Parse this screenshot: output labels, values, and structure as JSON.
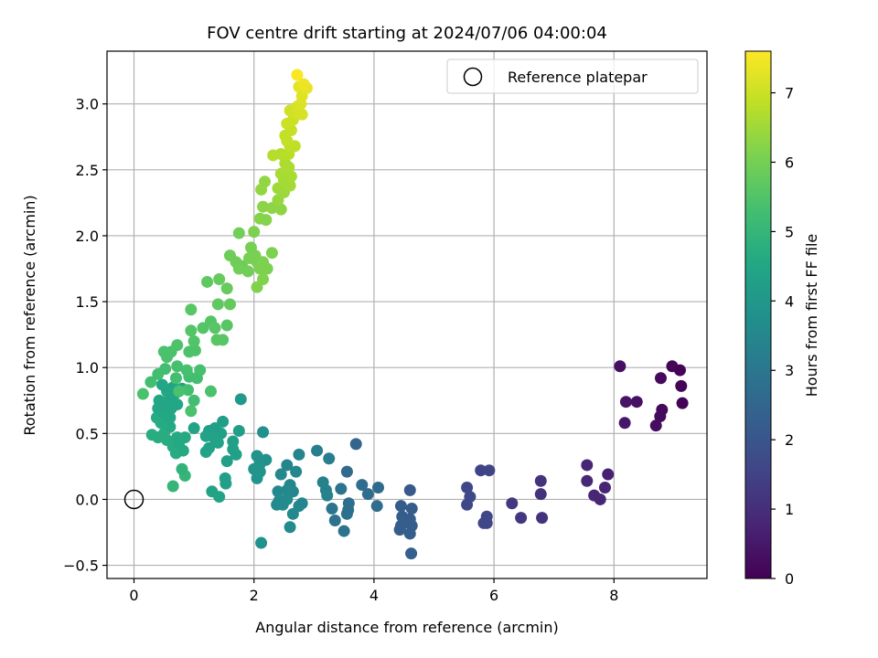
{
  "chart_data": {
    "type": "scatter",
    "title": "FOV centre drift starting at 2024/07/06 04:00:04",
    "xlabel": "Angular distance from reference (arcmin)",
    "ylabel": "Rotation from reference (arcmin)",
    "xlim": [
      -0.45,
      9.55
    ],
    "ylim": [
      -0.6,
      3.4
    ],
    "xticks": [
      0,
      2,
      4,
      6,
      8
    ],
    "yticks": [
      -0.5,
      0.0,
      0.5,
      1.0,
      1.5,
      2.0,
      2.5,
      3.0
    ],
    "xtick_labels": [
      "0",
      "2",
      "4",
      "6",
      "8"
    ],
    "ytick_labels": [
      "−0.5",
      "0.0",
      "0.5",
      "1.0",
      "1.5",
      "2.0",
      "2.5",
      "3.0"
    ],
    "grid": true,
    "legend": {
      "location": "upper right",
      "entries": [
        {
          "label": "Reference platepar",
          "marker": "open-circle"
        }
      ]
    },
    "reference_point": {
      "x": 0.0,
      "y": 0.0
    },
    "colorbar": {
      "label": "Hours from first FF file",
      "colormap": "viridis",
      "range": [
        0,
        7.6
      ],
      "ticks": [
        0,
        1,
        2,
        3,
        4,
        5,
        6,
        7
      ],
      "tick_labels": [
        "0",
        "1",
        "2",
        "3",
        "4",
        "5",
        "6",
        "7"
      ]
    },
    "points": [
      {
        "x": 8.1,
        "y": 1.01,
        "c": 0.3
      },
      {
        "x": 8.97,
        "y": 1.01,
        "c": 0.1
      },
      {
        "x": 9.1,
        "y": 0.98,
        "c": 0.05
      },
      {
        "x": 8.78,
        "y": 0.92,
        "c": 0.2
      },
      {
        "x": 9.12,
        "y": 0.86,
        "c": 0.08
      },
      {
        "x": 8.2,
        "y": 0.74,
        "c": 0.4
      },
      {
        "x": 8.38,
        "y": 0.74,
        "c": 0.35
      },
      {
        "x": 9.14,
        "y": 0.73,
        "c": 0.05
      },
      {
        "x": 8.8,
        "y": 0.68,
        "c": 0.15
      },
      {
        "x": 8.77,
        "y": 0.63,
        "c": 0.2
      },
      {
        "x": 8.18,
        "y": 0.58,
        "c": 0.45
      },
      {
        "x": 8.7,
        "y": 0.56,
        "c": 0.25
      },
      {
        "x": 7.55,
        "y": 0.26,
        "c": 0.8
      },
      {
        "x": 7.9,
        "y": 0.19,
        "c": 0.7
      },
      {
        "x": 7.55,
        "y": 0.14,
        "c": 0.85
      },
      {
        "x": 7.85,
        "y": 0.09,
        "c": 0.75
      },
      {
        "x": 7.67,
        "y": 0.03,
        "c": 0.8
      },
      {
        "x": 7.77,
        "y": 0.0,
        "c": 0.8
      },
      {
        "x": 6.78,
        "y": 0.14,
        "c": 1.1
      },
      {
        "x": 6.78,
        "y": 0.04,
        "c": 1.1
      },
      {
        "x": 6.3,
        "y": -0.03,
        "c": 1.25
      },
      {
        "x": 6.45,
        "y": -0.14,
        "c": 1.2
      },
      {
        "x": 6.8,
        "y": -0.14,
        "c": 1.1
      },
      {
        "x": 5.78,
        "y": 0.22,
        "c": 1.5
      },
      {
        "x": 5.92,
        "y": 0.22,
        "c": 1.55
      },
      {
        "x": 5.55,
        "y": 0.09,
        "c": 1.6
      },
      {
        "x": 5.6,
        "y": 0.02,
        "c": 1.65
      },
      {
        "x": 5.55,
        "y": -0.04,
        "c": 1.65
      },
      {
        "x": 5.88,
        "y": -0.13,
        "c": 1.6
      },
      {
        "x": 5.83,
        "y": -0.18,
        "c": 1.6
      },
      {
        "x": 5.88,
        "y": -0.18,
        "c": 1.6
      },
      {
        "x": 4.6,
        "y": 0.07,
        "c": 2.1
      },
      {
        "x": 4.45,
        "y": -0.05,
        "c": 2.2
      },
      {
        "x": 4.63,
        "y": -0.07,
        "c": 2.2
      },
      {
        "x": 4.47,
        "y": -0.13,
        "c": 2.2
      },
      {
        "x": 4.6,
        "y": -0.15,
        "c": 2.2
      },
      {
        "x": 4.45,
        "y": -0.2,
        "c": 2.25
      },
      {
        "x": 4.63,
        "y": -0.2,
        "c": 2.25
      },
      {
        "x": 4.43,
        "y": -0.23,
        "c": 2.25
      },
      {
        "x": 4.6,
        "y": -0.26,
        "c": 2.25
      },
      {
        "x": 4.62,
        "y": -0.41,
        "c": 2.3
      },
      {
        "x": 3.7,
        "y": 0.42,
        "c": 2.5
      },
      {
        "x": 3.55,
        "y": 0.21,
        "c": 2.6
      },
      {
        "x": 3.8,
        "y": 0.11,
        "c": 2.7
      },
      {
        "x": 4.07,
        "y": 0.09,
        "c": 2.65
      },
      {
        "x": 3.9,
        "y": 0.04,
        "c": 2.7
      },
      {
        "x": 3.58,
        "y": -0.03,
        "c": 2.75
      },
      {
        "x": 4.05,
        "y": -0.05,
        "c": 2.7
      },
      {
        "x": 3.57,
        "y": -0.08,
        "c": 2.8
      },
      {
        "x": 3.55,
        "y": -0.11,
        "c": 2.8
      },
      {
        "x": 3.35,
        "y": -0.16,
        "c": 2.85
      },
      {
        "x": 3.5,
        "y": -0.24,
        "c": 2.9
      },
      {
        "x": 3.3,
        "y": -0.07,
        "c": 2.9
      },
      {
        "x": 3.45,
        "y": 0.08,
        "c": 2.9
      },
      {
        "x": 3.05,
        "y": 0.37,
        "c": 3.2
      },
      {
        "x": 3.25,
        "y": 0.31,
        "c": 3.2
      },
      {
        "x": 3.15,
        "y": 0.13,
        "c": 3.3
      },
      {
        "x": 3.2,
        "y": 0.07,
        "c": 3.3
      },
      {
        "x": 3.22,
        "y": 0.03,
        "c": 3.35
      },
      {
        "x": 2.75,
        "y": 0.34,
        "c": 3.4
      },
      {
        "x": 2.55,
        "y": 0.26,
        "c": 3.45
      },
      {
        "x": 2.7,
        "y": 0.21,
        "c": 3.5
      },
      {
        "x": 2.45,
        "y": 0.19,
        "c": 3.55
      },
      {
        "x": 2.6,
        "y": 0.11,
        "c": 3.5
      },
      {
        "x": 2.65,
        "y": 0.06,
        "c": 3.5
      },
      {
        "x": 2.55,
        "y": 0.07,
        "c": 3.55
      },
      {
        "x": 2.4,
        "y": 0.06,
        "c": 3.55
      },
      {
        "x": 2.55,
        "y": 0.0,
        "c": 3.6
      },
      {
        "x": 2.42,
        "y": -0.01,
        "c": 3.6
      },
      {
        "x": 2.48,
        "y": -0.04,
        "c": 3.6
      },
      {
        "x": 2.38,
        "y": -0.04,
        "c": 3.6
      },
      {
        "x": 2.8,
        "y": -0.03,
        "c": 3.5
      },
      {
        "x": 2.75,
        "y": -0.05,
        "c": 3.5
      },
      {
        "x": 2.65,
        "y": -0.11,
        "c": 3.55
      },
      {
        "x": 2.6,
        "y": -0.21,
        "c": 3.6
      },
      {
        "x": 2.12,
        "y": -0.33,
        "c": 3.8
      },
      {
        "x": 2.15,
        "y": 0.51,
        "c": 3.8
      },
      {
        "x": 2.2,
        "y": 0.3,
        "c": 3.8
      },
      {
        "x": 2.1,
        "y": 0.27,
        "c": 3.85
      },
      {
        "x": 2.05,
        "y": 0.33,
        "c": 3.85
      },
      {
        "x": 2.0,
        "y": 0.23,
        "c": 3.9
      },
      {
        "x": 2.1,
        "y": 0.21,
        "c": 3.9
      },
      {
        "x": 2.05,
        "y": 0.16,
        "c": 3.9
      },
      {
        "x": 1.78,
        "y": 0.76,
        "c": 4.1
      },
      {
        "x": 1.75,
        "y": 0.52,
        "c": 4.2
      },
      {
        "x": 1.48,
        "y": 0.59,
        "c": 4.2
      },
      {
        "x": 1.35,
        "y": 0.54,
        "c": 4.3
      },
      {
        "x": 1.45,
        "y": 0.5,
        "c": 4.3
      },
      {
        "x": 1.25,
        "y": 0.52,
        "c": 4.3
      },
      {
        "x": 1.2,
        "y": 0.48,
        "c": 4.35
      },
      {
        "x": 1.35,
        "y": 0.46,
        "c": 4.35
      },
      {
        "x": 1.4,
        "y": 0.43,
        "c": 4.35
      },
      {
        "x": 1.65,
        "y": 0.44,
        "c": 4.25
      },
      {
        "x": 1.65,
        "y": 0.38,
        "c": 4.3
      },
      {
        "x": 1.7,
        "y": 0.34,
        "c": 4.3
      },
      {
        "x": 1.25,
        "y": 0.39,
        "c": 4.35
      },
      {
        "x": 1.2,
        "y": 0.36,
        "c": 4.35
      },
      {
        "x": 1.55,
        "y": 0.29,
        "c": 4.3
      },
      {
        "x": 1.0,
        "y": 0.54,
        "c": 4.4
      },
      {
        "x": 1.52,
        "y": 0.16,
        "c": 4.3
      },
      {
        "x": 1.53,
        "y": 0.12,
        "c": 4.3
      },
      {
        "x": 1.3,
        "y": 0.06,
        "c": 4.4
      },
      {
        "x": 1.42,
        "y": 0.02,
        "c": 4.4
      },
      {
        "x": 0.65,
        "y": 0.1,
        "c": 5.0
      },
      {
        "x": 0.85,
        "y": 0.18,
        "c": 5.0
      },
      {
        "x": 0.8,
        "y": 0.23,
        "c": 4.9
      },
      {
        "x": 0.55,
        "y": 0.45,
        "c": 4.7
      },
      {
        "x": 0.5,
        "y": 0.5,
        "c": 4.7
      },
      {
        "x": 0.6,
        "y": 0.55,
        "c": 4.6
      },
      {
        "x": 0.72,
        "y": 0.47,
        "c": 4.6
      },
      {
        "x": 0.85,
        "y": 0.47,
        "c": 4.6
      },
      {
        "x": 0.65,
        "y": 0.4,
        "c": 4.65
      },
      {
        "x": 0.7,
        "y": 0.35,
        "c": 4.65
      },
      {
        "x": 0.82,
        "y": 0.37,
        "c": 4.6
      },
      {
        "x": 0.75,
        "y": 0.43,
        "c": 4.6
      },
      {
        "x": 0.3,
        "y": 0.49,
        "c": 4.7
      },
      {
        "x": 0.4,
        "y": 0.47,
        "c": 4.7
      },
      {
        "x": 0.45,
        "y": 0.58,
        "c": 4.65
      },
      {
        "x": 0.38,
        "y": 0.62,
        "c": 4.65
      },
      {
        "x": 0.55,
        "y": 0.63,
        "c": 4.6
      },
      {
        "x": 0.5,
        "y": 0.66,
        "c": 4.55
      },
      {
        "x": 0.4,
        "y": 0.69,
        "c": 4.55
      },
      {
        "x": 0.62,
        "y": 0.69,
        "c": 4.5
      },
      {
        "x": 0.5,
        "y": 0.72,
        "c": 4.5
      },
      {
        "x": 0.42,
        "y": 0.75,
        "c": 4.5
      },
      {
        "x": 0.6,
        "y": 0.77,
        "c": 4.45
      },
      {
        "x": 0.68,
        "y": 0.8,
        "c": 4.45
      },
      {
        "x": 0.72,
        "y": 0.72,
        "c": 4.5
      },
      {
        "x": 0.8,
        "y": 0.84,
        "c": 4.45
      },
      {
        "x": 0.65,
        "y": 0.85,
        "c": 4.45
      },
      {
        "x": 0.55,
        "y": 0.82,
        "c": 4.5
      },
      {
        "x": 0.47,
        "y": 0.87,
        "c": 4.5
      },
      {
        "x": 0.6,
        "y": 0.62,
        "c": 4.55
      },
      {
        "x": 1.28,
        "y": 0.82,
        "c": 5.4
      },
      {
        "x": 0.95,
        "y": 0.67,
        "c": 5.4
      },
      {
        "x": 1.0,
        "y": 0.75,
        "c": 5.3
      },
      {
        "x": 0.9,
        "y": 0.83,
        "c": 5.3
      },
      {
        "x": 0.75,
        "y": 0.82,
        "c": 5.4
      },
      {
        "x": 0.28,
        "y": 0.89,
        "c": 5.3
      },
      {
        "x": 0.15,
        "y": 0.8,
        "c": 5.4
      },
      {
        "x": 0.4,
        "y": 0.95,
        "c": 5.3
      },
      {
        "x": 0.52,
        "y": 0.99,
        "c": 5.3
      },
      {
        "x": 0.7,
        "y": 0.92,
        "c": 5.3
      },
      {
        "x": 0.92,
        "y": 0.93,
        "c": 5.3
      },
      {
        "x": 1.05,
        "y": 0.92,
        "c": 5.3
      },
      {
        "x": 0.88,
        "y": 0.98,
        "c": 5.35
      },
      {
        "x": 1.1,
        "y": 0.98,
        "c": 5.35
      },
      {
        "x": 0.72,
        "y": 1.01,
        "c": 5.35
      },
      {
        "x": 0.55,
        "y": 1.08,
        "c": 5.4
      },
      {
        "x": 0.62,
        "y": 1.12,
        "c": 5.4
      },
      {
        "x": 0.5,
        "y": 1.12,
        "c": 5.4
      },
      {
        "x": 0.72,
        "y": 1.17,
        "c": 5.45
      },
      {
        "x": 0.92,
        "y": 1.12,
        "c": 5.45
      },
      {
        "x": 1.02,
        "y": 1.13,
        "c": 5.45
      },
      {
        "x": 1.0,
        "y": 1.2,
        "c": 5.5
      },
      {
        "x": 0.95,
        "y": 1.28,
        "c": 5.55
      },
      {
        "x": 1.15,
        "y": 1.3,
        "c": 5.55
      },
      {
        "x": 1.28,
        "y": 1.35,
        "c": 5.55
      },
      {
        "x": 1.35,
        "y": 1.3,
        "c": 5.6
      },
      {
        "x": 1.55,
        "y": 1.32,
        "c": 5.6
      },
      {
        "x": 0.95,
        "y": 1.44,
        "c": 5.6
      },
      {
        "x": 1.38,
        "y": 1.21,
        "c": 5.6
      },
      {
        "x": 1.48,
        "y": 1.21,
        "c": 5.6
      },
      {
        "x": 1.22,
        "y": 1.65,
        "c": 5.7
      },
      {
        "x": 1.4,
        "y": 1.48,
        "c": 5.7
      },
      {
        "x": 1.6,
        "y": 1.48,
        "c": 5.75
      },
      {
        "x": 1.55,
        "y": 1.6,
        "c": 5.8
      },
      {
        "x": 1.42,
        "y": 1.67,
        "c": 5.8
      },
      {
        "x": 1.75,
        "y": 2.02,
        "c": 5.95
      },
      {
        "x": 1.6,
        "y": 1.85,
        "c": 5.9
      },
      {
        "x": 1.7,
        "y": 1.8,
        "c": 5.9
      },
      {
        "x": 1.8,
        "y": 1.77,
        "c": 5.9
      },
      {
        "x": 1.75,
        "y": 1.75,
        "c": 5.95
      },
      {
        "x": 1.9,
        "y": 1.73,
        "c": 5.95
      },
      {
        "x": 1.95,
        "y": 1.91,
        "c": 6.0
      },
      {
        "x": 2.02,
        "y": 1.85,
        "c": 6.05
      },
      {
        "x": 1.92,
        "y": 1.83,
        "c": 6.05
      },
      {
        "x": 2.05,
        "y": 1.8,
        "c": 6.05
      },
      {
        "x": 2.15,
        "y": 1.8,
        "c": 6.1
      },
      {
        "x": 2.1,
        "y": 1.75,
        "c": 6.1
      },
      {
        "x": 2.22,
        "y": 1.75,
        "c": 6.1
      },
      {
        "x": 2.3,
        "y": 1.87,
        "c": 6.1
      },
      {
        "x": 2.15,
        "y": 1.67,
        "c": 6.15
      },
      {
        "x": 2.05,
        "y": 1.61,
        "c": 6.15
      },
      {
        "x": 2.0,
        "y": 2.03,
        "c": 6.1
      },
      {
        "x": 2.1,
        "y": 2.13,
        "c": 6.2
      },
      {
        "x": 2.2,
        "y": 2.12,
        "c": 6.2
      },
      {
        "x": 2.15,
        "y": 2.22,
        "c": 6.25
      },
      {
        "x": 2.3,
        "y": 2.21,
        "c": 6.3
      },
      {
        "x": 2.45,
        "y": 2.2,
        "c": 6.3
      },
      {
        "x": 2.12,
        "y": 2.35,
        "c": 6.35
      },
      {
        "x": 2.18,
        "y": 2.41,
        "c": 6.35
      },
      {
        "x": 2.4,
        "y": 2.27,
        "c": 6.4
      },
      {
        "x": 2.5,
        "y": 2.33,
        "c": 6.45
      },
      {
        "x": 2.4,
        "y": 2.36,
        "c": 6.5
      },
      {
        "x": 2.5,
        "y": 2.42,
        "c": 6.55
      },
      {
        "x": 2.6,
        "y": 2.38,
        "c": 6.55
      },
      {
        "x": 2.45,
        "y": 2.47,
        "c": 6.6
      },
      {
        "x": 2.55,
        "y": 2.49,
        "c": 6.6
      },
      {
        "x": 2.62,
        "y": 2.45,
        "c": 6.6
      },
      {
        "x": 2.52,
        "y": 2.55,
        "c": 6.65
      },
      {
        "x": 2.58,
        "y": 2.52,
        "c": 6.65
      },
      {
        "x": 2.32,
        "y": 2.61,
        "c": 6.75
      },
      {
        "x": 2.45,
        "y": 2.62,
        "c": 6.75
      },
      {
        "x": 2.58,
        "y": 2.62,
        "c": 6.8
      },
      {
        "x": 2.6,
        "y": 2.68,
        "c": 6.85
      },
      {
        "x": 2.68,
        "y": 2.68,
        "c": 6.85
      },
      {
        "x": 2.52,
        "y": 2.76,
        "c": 6.9
      },
      {
        "x": 2.55,
        "y": 2.72,
        "c": 6.9
      },
      {
        "x": 2.62,
        "y": 2.8,
        "c": 6.95
      },
      {
        "x": 2.55,
        "y": 2.85,
        "c": 7.0
      },
      {
        "x": 2.65,
        "y": 2.88,
        "c": 7.0
      },
      {
        "x": 2.6,
        "y": 2.95,
        "c": 7.05
      },
      {
        "x": 2.72,
        "y": 2.93,
        "c": 7.1
      },
      {
        "x": 2.8,
        "y": 2.92,
        "c": 7.15
      },
      {
        "x": 2.72,
        "y": 2.98,
        "c": 7.15
      },
      {
        "x": 2.78,
        "y": 3.0,
        "c": 7.2
      },
      {
        "x": 2.8,
        "y": 3.06,
        "c": 7.25
      },
      {
        "x": 2.75,
        "y": 3.13,
        "c": 7.3
      },
      {
        "x": 2.88,
        "y": 3.12,
        "c": 7.35
      },
      {
        "x": 2.83,
        "y": 3.15,
        "c": 7.4
      },
      {
        "x": 2.72,
        "y": 3.22,
        "c": 7.55
      }
    ]
  }
}
